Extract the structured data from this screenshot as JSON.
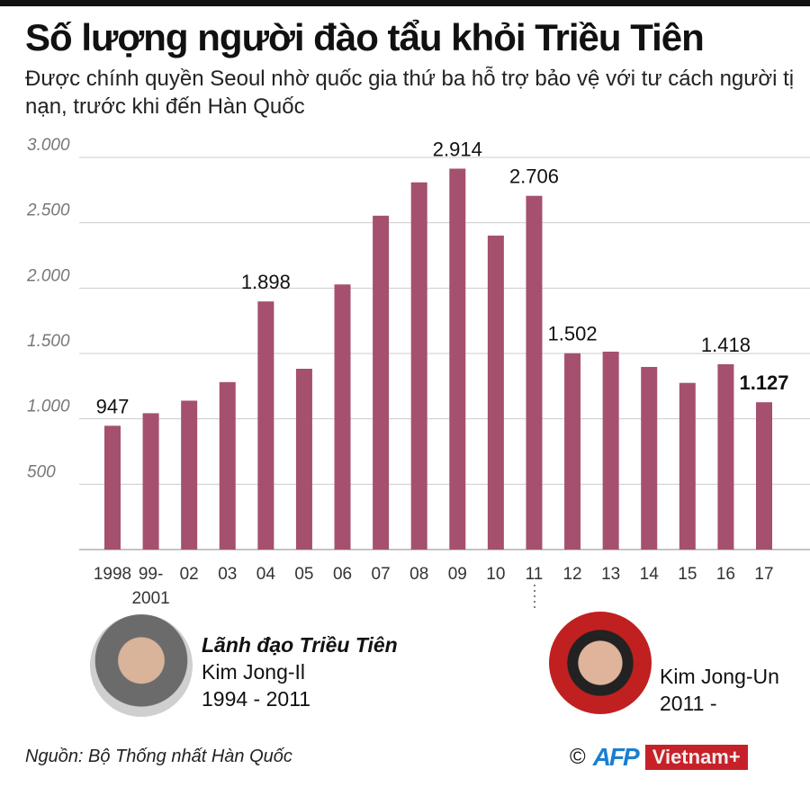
{
  "title": "Số lượng người đào tẩu khỏi Triều Tiên",
  "subtitle": "Được chính quyền Seoul nhờ quốc gia thứ ba hỗ trợ bảo vệ với tư cách người tị nạn, trước khi đến Hàn Quốc",
  "chart_data": {
    "type": "bar",
    "categories": [
      "1998",
      "99-\n2001",
      "02",
      "03",
      "04",
      "05",
      "06",
      "07",
      "08",
      "09",
      "10",
      "11",
      "12",
      "13",
      "14",
      "15",
      "16",
      "17"
    ],
    "values": [
      947,
      1043,
      1139,
      1281,
      1898,
      1383,
      2028,
      2554,
      2809,
      2914,
      2402,
      2706,
      1502,
      1514,
      1397,
      1275,
      1418,
      1127
    ],
    "data_labels": {
      "1998": "947",
      "04": "1.898",
      "09": "2.914",
      "11": "2.706",
      "12": "1.502",
      "16": "1.418",
      "17": "1.127"
    },
    "yticks": [
      "500",
      "1.000",
      "1.500",
      "2.000",
      "2.500",
      "3.000"
    ],
    "ylim": [
      0,
      3000
    ],
    "grid": true,
    "bar_color": "#a5506f"
  },
  "leaders": {
    "heading": "Lãnh đạo Triều Tiên",
    "first": {
      "name": "Kim Jong-Il",
      "years": "1994 - 2011"
    },
    "second": {
      "name": "Kim Jong-Un",
      "years": "2011 -"
    }
  },
  "source": "Nguồn: Bộ Thống nhất Hàn Quốc",
  "logos": {
    "copyright": "©",
    "afp": "AFP",
    "vietnam": "Vietnam+"
  }
}
